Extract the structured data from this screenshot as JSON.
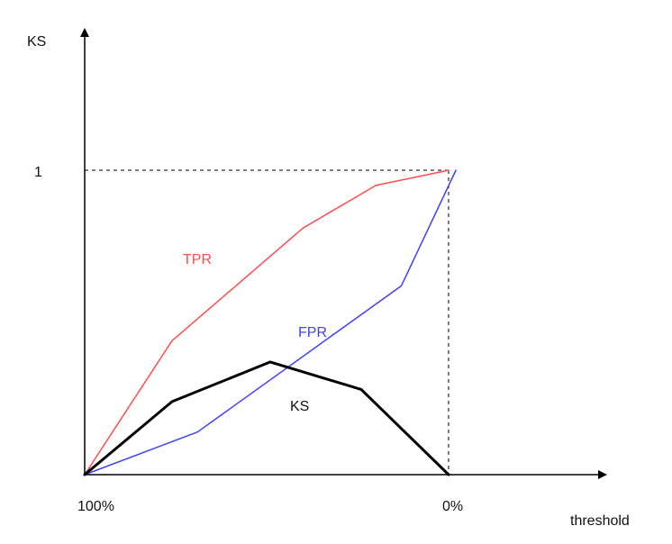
{
  "chart_data": {
    "type": "line",
    "xlabel": "threshold",
    "ylabel": "KS",
    "x_tick_labels": [
      "100%",
      "0%"
    ],
    "y_tick_labels": [
      "1"
    ],
    "xlim": [
      0,
      1
    ],
    "ylim": [
      0,
      1
    ],
    "reference_lines": [
      {
        "axis": "y",
        "value": 1,
        "style": "dashed"
      },
      {
        "axis": "x",
        "value": 1,
        "style": "dashed"
      }
    ],
    "series": [
      {
        "name": "TPR",
        "color": "#ff4d4d",
        "x": [
          0,
          0.24,
          0.6,
          0.8,
          1.0
        ],
        "y": [
          0,
          0.44,
          0.81,
          0.95,
          1.0
        ]
      },
      {
        "name": "FPR",
        "color": "#3f3fff",
        "x": [
          0,
          0.31,
          0.87,
          1.02
        ],
        "y": [
          0,
          0.14,
          0.62,
          1.0
        ]
      },
      {
        "name": "KS",
        "color": "#000000",
        "x": [
          0,
          0.24,
          0.51,
          0.76,
          1.0
        ],
        "y": [
          0,
          0.24,
          0.37,
          0.28,
          0
        ]
      }
    ],
    "grid": false,
    "legend": "none"
  }
}
